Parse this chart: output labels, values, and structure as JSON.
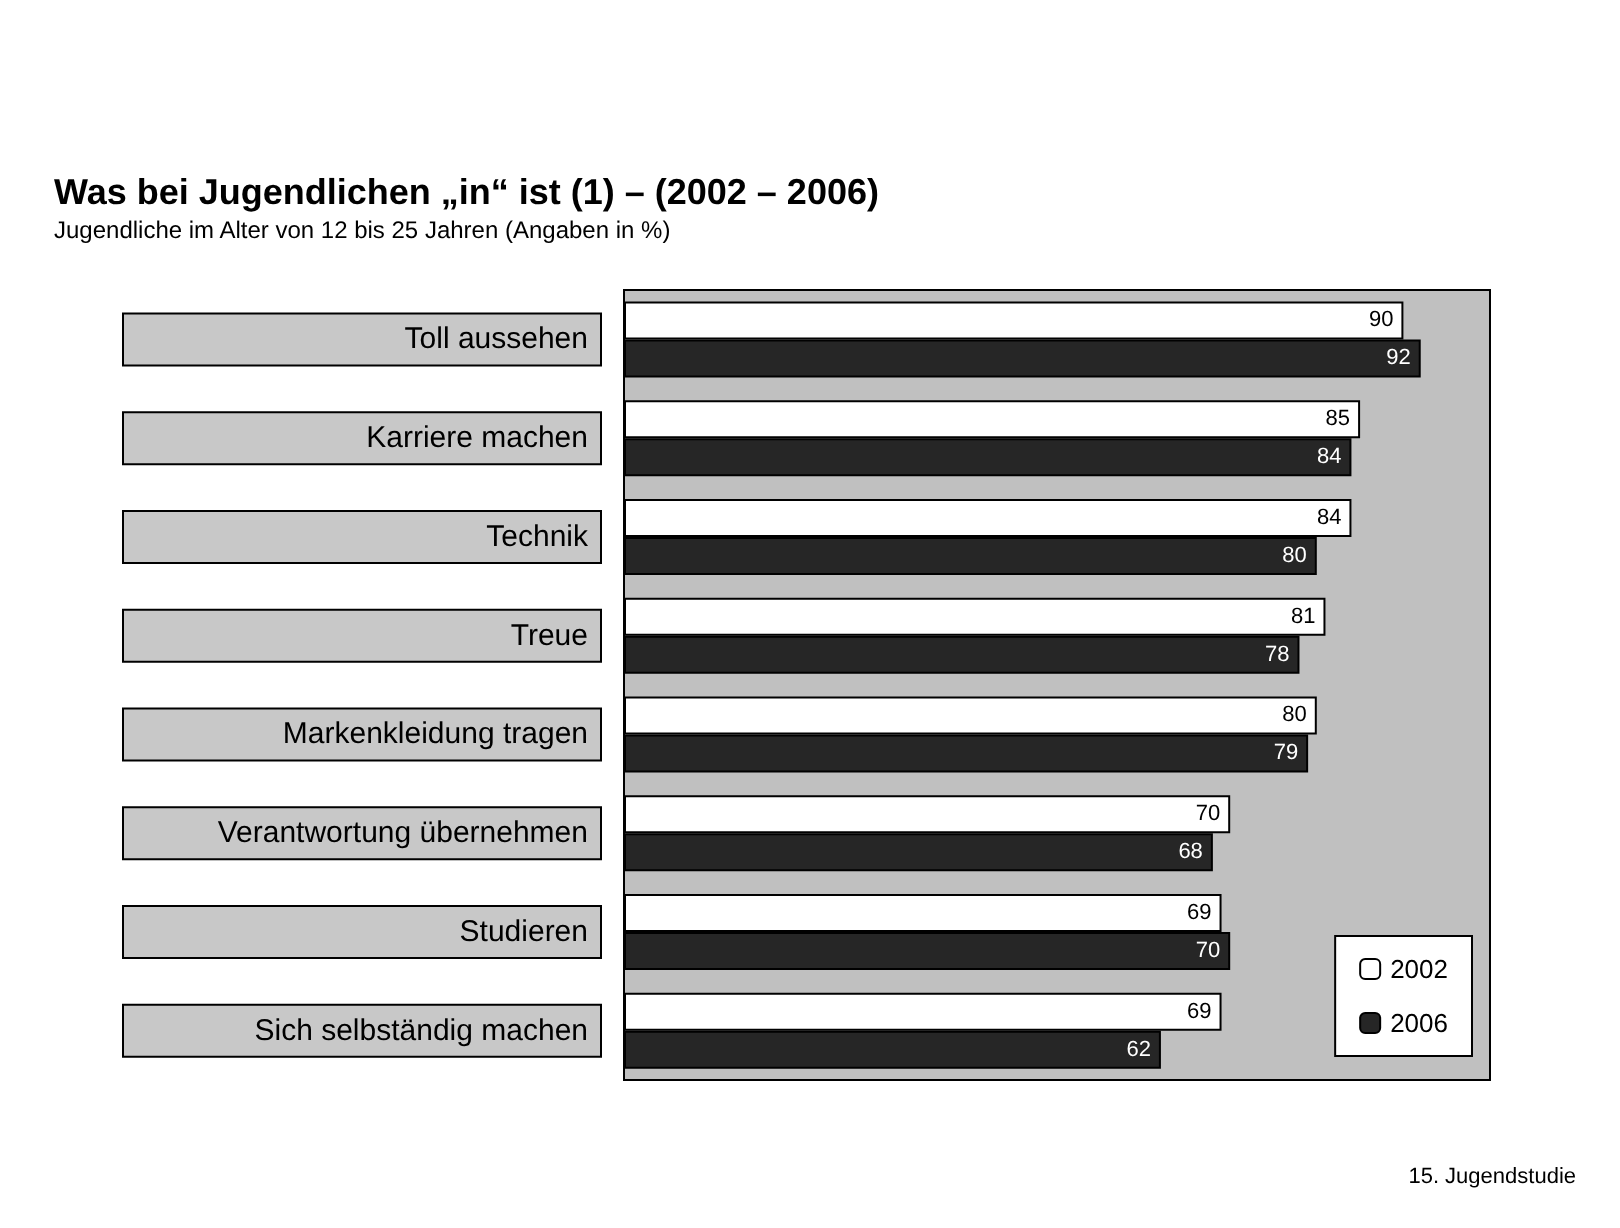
{
  "chart_data": {
    "type": "bar",
    "orientation": "horizontal",
    "title": "Was bei Jugendlichen „in“ ist (1) – (2002 – 2006)",
    "subtitle": "Jugendliche im Alter von 12 bis 25 Jahren (Angaben in %)",
    "categories": [
      "Toll aussehen",
      "Karriere machen",
      "Technik",
      "Treue",
      "Markenkleidung tragen",
      "Verantwortung übernehmen",
      "Studieren",
      "Sich selbständig machen"
    ],
    "series": [
      {
        "name": "2002",
        "color": "#ffffff",
        "values": [
          90,
          85,
          84,
          81,
          80,
          70,
          69,
          69
        ]
      },
      {
        "name": "2006",
        "color": "#262626",
        "values": [
          92,
          84,
          80,
          78,
          79,
          68,
          70,
          62
        ]
      }
    ],
    "data_labels": true,
    "legend": "bottom right",
    "grid": false,
    "tick_labels": "y",
    "annotations": [
      "15. Jugendstudie"
    ]
  }
}
